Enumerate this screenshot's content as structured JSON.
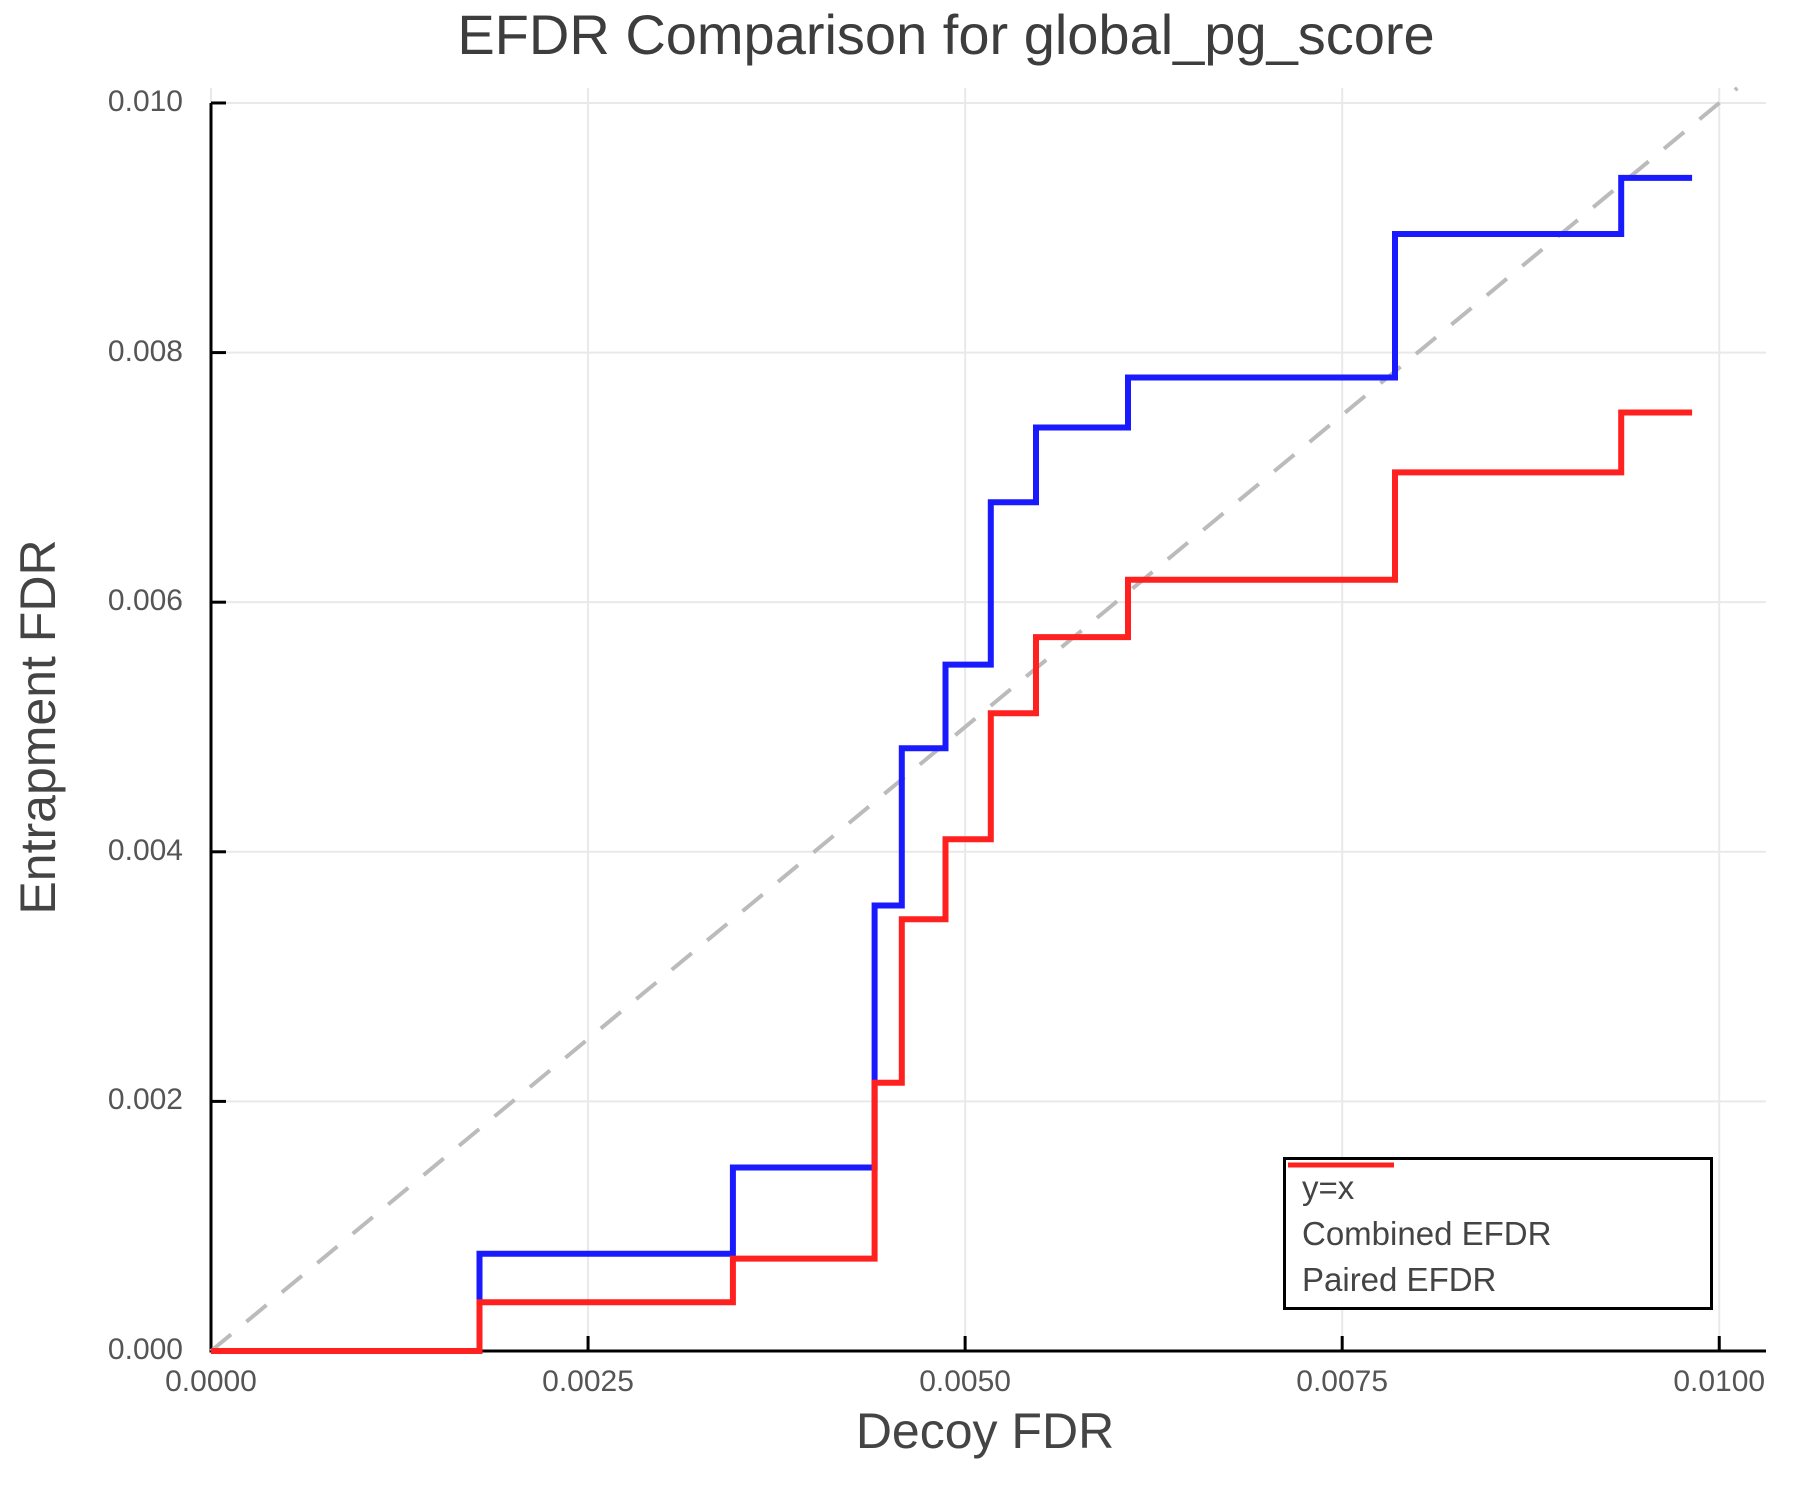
{
  "title": "EFDR Comparison for global_pg_score",
  "x_axis": {
    "label": "Decoy FDR",
    "ticks": [
      "0.0000",
      "0.0025",
      "0.0050",
      "0.0075",
      "0.0100"
    ]
  },
  "y_axis": {
    "label": "Entrapment FDR",
    "ticks": [
      "0.000",
      "0.002",
      "0.004",
      "0.006",
      "0.008",
      "0.010"
    ]
  },
  "legend": {
    "items": [
      {
        "label": "y=x",
        "color": "#bbbbbb",
        "style": "dashed"
      },
      {
        "label": "Combined EFDR",
        "color": "#1a1aff",
        "style": "solid"
      },
      {
        "label": "Paired EFDR",
        "color": "#ff2020",
        "style": "solid"
      }
    ]
  },
  "colors": {
    "grid": "#e9e9e9",
    "axis": "#000000",
    "diagonal": "#bbbbbb",
    "combined": "#1a1aff",
    "paired": "#ff2020",
    "title_text": "#3d3d3d",
    "tick_text": "#555555"
  },
  "chart_data": {
    "type": "line",
    "subtype": "step-post",
    "title": "EFDR Comparison for global_pg_score",
    "xlabel": "Decoy FDR",
    "ylabel": "Entrapment FDR",
    "xlim": [
      0,
      0.01031
    ],
    "ylim": [
      0,
      0.01012
    ],
    "grid": true,
    "legend_position": "lower right",
    "x": [
      0,
      0.00178,
      0.00346,
      0.0044,
      0.00458,
      0.00487,
      0.00517,
      0.00547,
      0.00608,
      0.00785,
      0.00935,
      0.00982
    ],
    "series": [
      {
        "name": "Combined EFDR",
        "color": "#1a1aff",
        "values": [
          0,
          0.00078,
          0.00147,
          0.00357,
          0.00483,
          0.0055,
          0.0068,
          0.0074,
          0.0078,
          0.00895,
          0.0094,
          0.0094
        ]
      },
      {
        "name": "Paired EFDR",
        "color": "#ff2020",
        "values": [
          0,
          0.00039,
          0.00074,
          0.00215,
          0.00346,
          0.0041,
          0.00511,
          0.00572,
          0.00618,
          0.00704,
          0.00752,
          0.00752
        ]
      },
      {
        "name": "y=x",
        "color": "#bbbbbb",
        "dashed": true,
        "diagonal": [
          [
            0,
            0
          ],
          [
            0.01012,
            0.01012
          ]
        ]
      }
    ]
  }
}
